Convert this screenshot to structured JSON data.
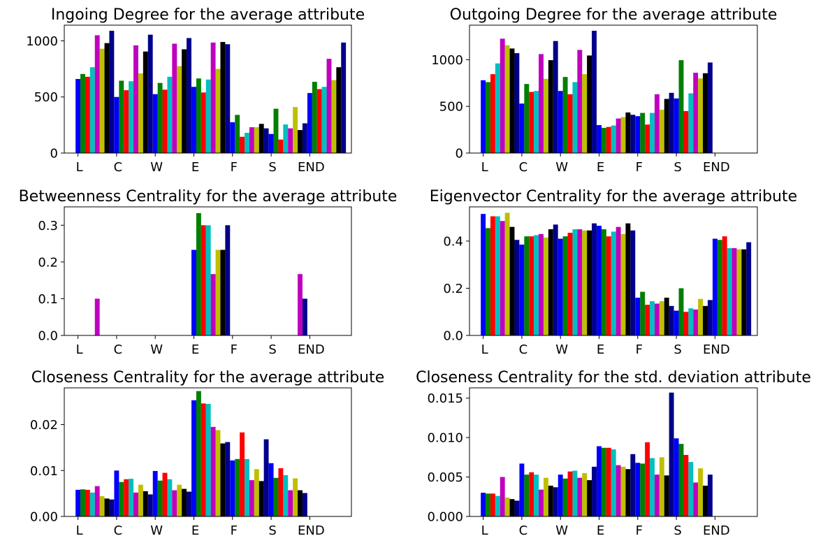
{
  "series_colors": [
    "#0000ff",
    "#007f00",
    "#ff0000",
    "#00bfbf",
    "#bf00bf",
    "#bfbf00",
    "#000000",
    "#00008b"
  ],
  "chart_data": [
    {
      "type": "bar",
      "title": "Ingoing Degree for the average attribute",
      "categories": [
        "L",
        "C",
        "W",
        "E",
        "F",
        "S",
        "END"
      ],
      "ylim": [
        0,
        1140
      ],
      "yticks": [
        "0",
        "500",
        "1000"
      ],
      "ytick_values": [
        0,
        500,
        1000
      ],
      "grid": false,
      "values": [
        [
          660,
          705,
          680,
          765,
          1050,
          930,
          980,
          1090
        ],
        [
          500,
          645,
          560,
          640,
          960,
          710,
          905,
          1055
        ],
        [
          525,
          625,
          565,
          680,
          975,
          775,
          925,
          1025
        ],
        [
          590,
          665,
          540,
          655,
          985,
          750,
          990,
          970
        ],
        [
          275,
          340,
          145,
          180,
          230,
          230,
          260,
          220
        ],
        [
          170,
          395,
          120,
          255,
          220,
          410,
          205,
          265
        ],
        [
          535,
          635,
          570,
          590,
          840,
          650,
          765,
          985
        ]
      ]
    },
    {
      "type": "bar",
      "title": "Outgoing Degree for the average attribute",
      "categories": [
        "L",
        "C",
        "W",
        "E",
        "F",
        "S",
        "END"
      ],
      "ylim": [
        0,
        1370
      ],
      "yticks": [
        "0",
        "500",
        "1000"
      ],
      "ytick_values": [
        0,
        500,
        1000
      ],
      "grid": false,
      "values": [
        [
          780,
          760,
          845,
          960,
          1225,
          1155,
          1120,
          1070
        ],
        [
          530,
          740,
          655,
          665,
          1060,
          795,
          995,
          1200
        ],
        [
          665,
          815,
          630,
          760,
          1105,
          845,
          1045,
          1310
        ],
        [
          300,
          270,
          280,
          295,
          370,
          385,
          435,
          410
        ],
        [
          395,
          430,
          305,
          430,
          630,
          465,
          580,
          645
        ],
        [
          585,
          995,
          450,
          640,
          860,
          800,
          855,
          970
        ],
        [
          0,
          0,
          0,
          0,
          0,
          0,
          0,
          0
        ]
      ]
    },
    {
      "type": "bar",
      "title": "Betweenness Centrality for the average attribute",
      "categories": [
        "L",
        "C",
        "W",
        "E",
        "F",
        "S",
        "END"
      ],
      "ylim": [
        0,
        0.35
      ],
      "yticks": [
        "0.0",
        "0.1",
        "0.2",
        "0.3"
      ],
      "ytick_values": [
        0,
        0.1,
        0.2,
        0.3
      ],
      "grid": false,
      "values": [
        [
          0,
          0,
          0,
          0,
          0.1,
          0,
          0,
          0
        ],
        [
          0,
          0,
          0,
          0,
          0,
          0,
          0,
          0
        ],
        [
          0,
          0,
          0,
          0,
          0,
          0,
          0,
          0
        ],
        [
          0.233,
          0.333,
          0.3,
          0.3,
          0.167,
          0.233,
          0.233,
          0.3
        ],
        [
          0,
          0,
          0,
          0,
          0,
          0,
          0,
          0
        ],
        [
          0,
          0,
          0,
          0,
          0,
          0,
          0,
          0.1
        ],
        [
          0,
          0,
          0,
          0,
          0,
          0,
          0,
          0
        ]
      ],
      "extra_bars": [
        {
          "category_index": 5,
          "series_index": 4,
          "value": 0.167,
          "offset_slots": 6
        }
      ]
    },
    {
      "type": "bar",
      "title": "Eigenvector Centrality for the average attribute",
      "categories": [
        "L",
        "C",
        "W",
        "E",
        "F",
        "S",
        "END"
      ],
      "ylim": [
        0,
        0.545
      ],
      "yticks": [
        "0.0",
        "0.2",
        "0.4"
      ],
      "ytick_values": [
        0,
        0.2,
        0.4
      ],
      "grid": false,
      "values": [
        [
          0.515,
          0.455,
          0.505,
          0.505,
          0.485,
          0.52,
          0.46,
          0.405
        ],
        [
          0.385,
          0.42,
          0.42,
          0.425,
          0.43,
          0.415,
          0.45,
          0.47
        ],
        [
          0.41,
          0.42,
          0.435,
          0.45,
          0.45,
          0.445,
          0.445,
          0.475
        ],
        [
          0.465,
          0.45,
          0.42,
          0.44,
          0.46,
          0.43,
          0.475,
          0.445
        ],
        [
          0.16,
          0.185,
          0.13,
          0.145,
          0.135,
          0.145,
          0.16,
          0.125
        ],
        [
          0.105,
          0.2,
          0.1,
          0.115,
          0.11,
          0.155,
          0.125,
          0.15
        ],
        [
          0.41,
          0.405,
          0.42,
          0.37,
          0.37,
          0.365,
          0.365,
          0.395
        ]
      ]
    },
    {
      "type": "bar",
      "title": "Closeness Centrality for the average attribute",
      "categories": [
        "L",
        "C",
        "W",
        "E",
        "F",
        "S",
        "END"
      ],
      "ylim": [
        0,
        0.028
      ],
      "yticks": [
        "0.00",
        "0.01",
        "0.02"
      ],
      "ytick_values": [
        0,
        0.01,
        0.02
      ],
      "grid": false,
      "values": [
        [
          0.0058,
          0.0059,
          0.0058,
          0.0052,
          0.0066,
          0.0044,
          0.0039,
          0.0037
        ],
        [
          0.01,
          0.0075,
          0.0081,
          0.0082,
          0.0052,
          0.0069,
          0.0055,
          0.0048
        ],
        [
          0.0099,
          0.0078,
          0.0095,
          0.0081,
          0.0057,
          0.0069,
          0.006,
          0.0054
        ],
        [
          0.0253,
          0.0273,
          0.0246,
          0.0245,
          0.0195,
          0.0188,
          0.0159,
          0.0162
        ],
        [
          0.0122,
          0.0125,
          0.0183,
          0.0125,
          0.0079,
          0.0103,
          0.0077,
          0.0168
        ],
        [
          0.0116,
          0.0084,
          0.0105,
          0.009,
          0.0057,
          0.0083,
          0.0057,
          0.0051
        ],
        [
          0,
          0,
          0,
          0,
          0,
          0,
          0,
          0
        ]
      ]
    },
    {
      "type": "bar",
      "title": "Closeness Centrality for the std. deviation attribute",
      "categories": [
        "L",
        "C",
        "W",
        "E",
        "F",
        "S",
        "END"
      ],
      "ylim": [
        0,
        0.0163
      ],
      "yticks": [
        "0.000",
        "0.005",
        "0.010",
        "0.015"
      ],
      "ytick_values": [
        0,
        0.005,
        0.01,
        0.015
      ],
      "grid": false,
      "values": [
        [
          0.003,
          0.0029,
          0.0029,
          0.0026,
          0.005,
          0.0024,
          0.0022,
          0.002
        ],
        [
          0.0067,
          0.0053,
          0.0056,
          0.0053,
          0.0034,
          0.0049,
          0.0039,
          0.0037
        ],
        [
          0.0053,
          0.0048,
          0.0057,
          0.0058,
          0.0049,
          0.0055,
          0.0046,
          0.0063
        ],
        [
          0.0089,
          0.0087,
          0.0087,
          0.0085,
          0.0065,
          0.0063,
          0.006,
          0.0079
        ],
        [
          0.0068,
          0.0067,
          0.0094,
          0.0074,
          0.0053,
          0.0075,
          0.0052,
          0.0157
        ],
        [
          0.0099,
          0.0092,
          0.0078,
          0.0069,
          0.0043,
          0.0061,
          0.0039,
          0.0053
        ],
        [
          0,
          0,
          0,
          0,
          0,
          0,
          0,
          0
        ]
      ]
    }
  ]
}
